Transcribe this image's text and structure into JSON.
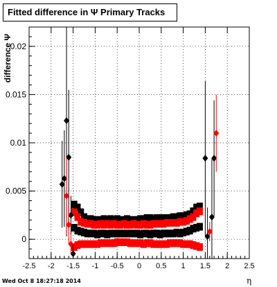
{
  "chart_data": {
    "type": "scatter",
    "title": "Fitted difference in  Ψ   Primary Tracks",
    "xlabel": "η",
    "ylabel": "difference Ψ",
    "xlim": [
      -2.5,
      2.5
    ],
    "ylim": [
      -0.002,
      0.022
    ],
    "x_ticks": [
      "-2.5",
      "-2",
      "-1.5",
      "-1",
      "-0.5",
      "0",
      "0.5",
      "1",
      "1.5",
      "2",
      "2.5"
    ],
    "y_ticks": [
      "0",
      "0.005",
      "0.01",
      "0.015",
      "0.02"
    ],
    "grid": true,
    "series": [
      {
        "color": "#000000",
        "marker": "diamond",
        "points": [
          [
            -1.75,
            0.0057,
            0.0045
          ],
          [
            -1.7,
            0.0063,
            0.005
          ],
          [
            -1.65,
            0.0123,
            0.012
          ],
          [
            -1.6,
            0.0085,
            0.007
          ],
          [
            -1.55,
            0.0025,
            0.002
          ],
          [
            -1.5,
            -0.0015,
            0.001
          ],
          [
            1.5,
            0.0084,
            0.008
          ],
          [
            1.55,
            0.0003,
            0.003
          ],
          [
            1.65,
            0.0023,
            0.006
          ],
          [
            1.7,
            0.0084,
            0.006
          ]
        ]
      },
      {
        "color": "#ff0000",
        "marker": "diamond",
        "points": [
          [
            -1.65,
            0.0045,
            0.004
          ],
          [
            -1.6,
            0.0015,
            0.002
          ],
          [
            -1.55,
            -0.0005,
            0.001
          ],
          [
            1.6,
            0.0008,
            0.001
          ],
          [
            1.75,
            0.011,
            0.004
          ]
        ]
      }
    ],
    "bands": [
      {
        "color": "#000000",
        "name_hidden": true,
        "values": [
          0.0036,
          0.0033,
          0.0028,
          0.0023,
          0.0021,
          0.0021,
          0.002,
          0.002,
          0.002,
          0.0021,
          0.002,
          0.0021,
          0.002,
          0.0021,
          0.002,
          0.002,
          0.0021,
          0.002,
          0.002,
          0.002,
          0.0021,
          0.0021,
          0.0022,
          0.0022,
          0.0021,
          0.0022,
          0.0022,
          0.0022,
          0.0022,
          0.0022,
          0.0023,
          0.0023,
          0.0024,
          0.0024,
          0.0025,
          0.0026,
          0.0029,
          0.0033,
          0.0034
        ]
      },
      {
        "color": "#000000",
        "name_hidden": true,
        "values": [
          0.0012,
          0.0009,
          0.0008,
          0.0007,
          0.0006,
          0.0006,
          0.0006,
          0.0005,
          0.0006,
          0.0006,
          0.0005,
          0.0006,
          0.0006,
          0.0006,
          0.0006,
          0.0006,
          0.0006,
          0.0006,
          0.0006,
          0.0006,
          0.0005,
          0.0006,
          0.0006,
          0.0005,
          0.0006,
          0.0006,
          0.0005,
          0.0006,
          0.0006,
          0.0006,
          0.0006,
          0.0007,
          0.0006,
          0.0007,
          0.0008,
          0.0009,
          0.0011,
          0.0012,
          0.0013
        ]
      },
      {
        "color": "#ff0000",
        "name_hidden": true,
        "values": [
          0.0028,
          0.0023,
          0.0018,
          0.0017,
          0.0016,
          0.0016,
          0.0015,
          0.0015,
          0.0016,
          0.0015,
          0.0016,
          0.0015,
          0.0016,
          0.0015,
          0.0015,
          0.0016,
          0.0015,
          0.0015,
          0.0016,
          0.0015,
          0.0015,
          0.0016,
          0.0015,
          0.0015,
          0.0016,
          0.0016,
          0.0016,
          0.0016,
          0.0017,
          0.0017,
          0.0017,
          0.0017,
          0.0018,
          0.0018,
          0.0019,
          0.0021,
          0.0023,
          0.0027,
          0.0029
        ]
      },
      {
        "color": "#ff0000",
        "name_hidden": true,
        "values": [
          -0.0008,
          -0.0006,
          -0.0005,
          -0.0005,
          -0.0005,
          -0.0005,
          -0.0005,
          -0.0005,
          -0.0004,
          -0.0004,
          -0.0004,
          -0.0004,
          -0.0004,
          -0.0003,
          -0.0003,
          -0.0003,
          -0.0003,
          -0.0004,
          -0.0004,
          -0.0004,
          -0.0004,
          -0.0005,
          -0.0004,
          -0.0004,
          -0.0005,
          -0.0005,
          -0.0005,
          -0.0005,
          -0.0005,
          -0.0004,
          -0.0004,
          -0.0004,
          -0.0004,
          -0.0005,
          -0.0005,
          -0.0005,
          -0.0006,
          -0.0007,
          -0.0008
        ]
      }
    ],
    "band_x_start": -1.475,
    "band_x_step": 0.075
  },
  "footer_text": "Wed Oct  8 18:27:18 2014"
}
